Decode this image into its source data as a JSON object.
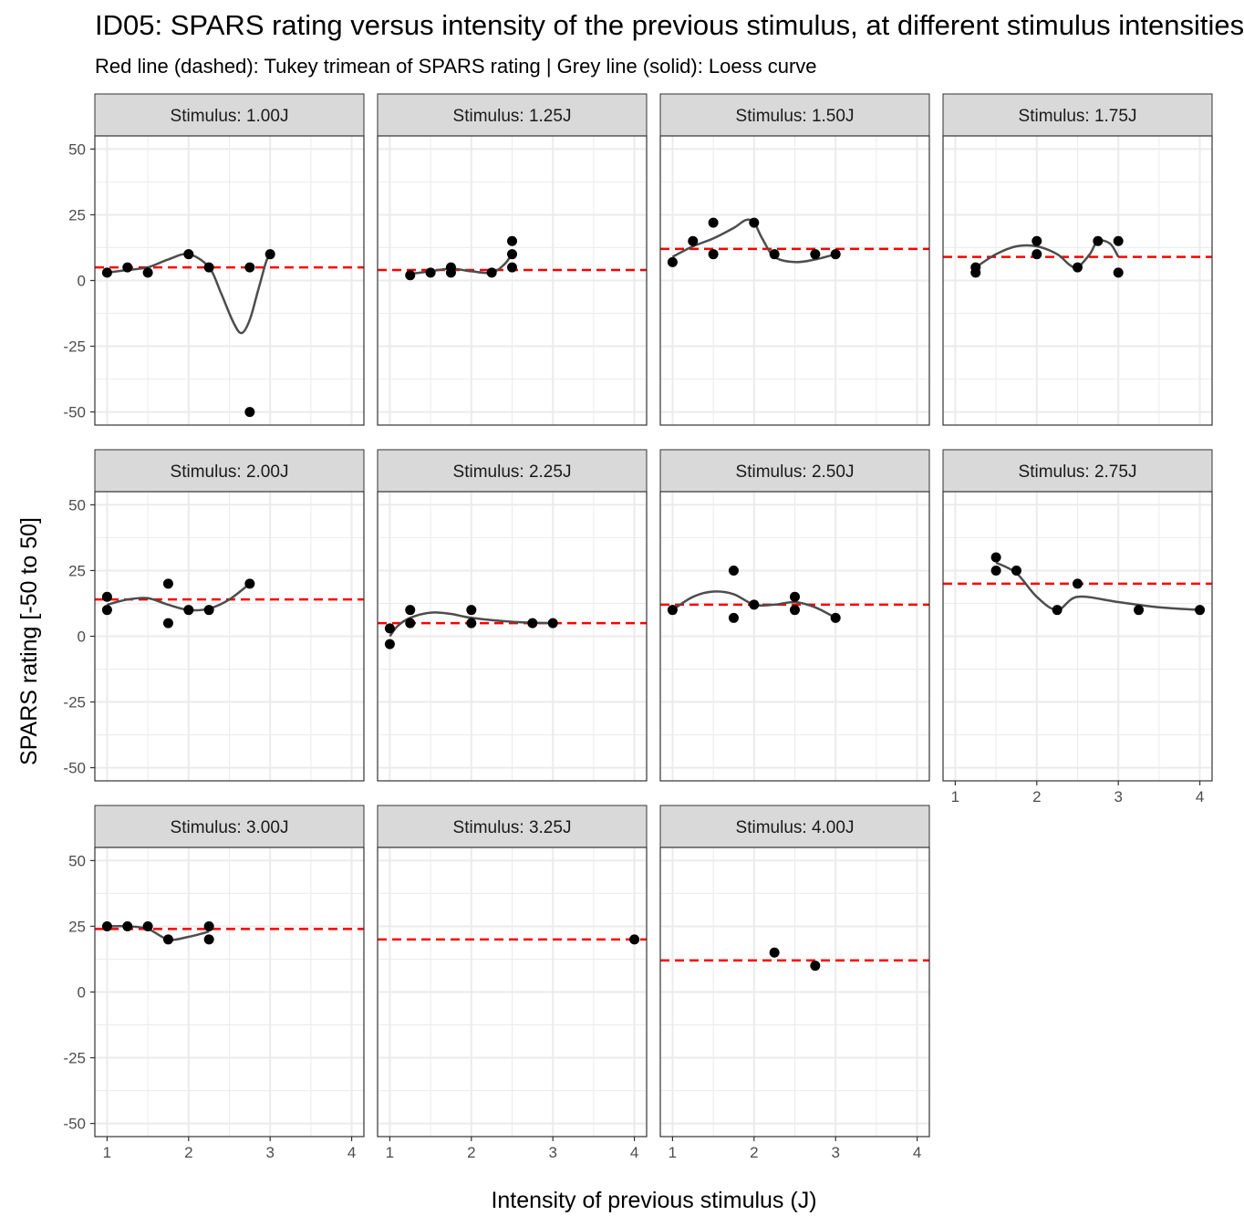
{
  "title": "ID05: SPARS rating versus intensity of the previous stimulus, at different stimulus intensities",
  "subtitle": "Red line (dashed): Tukey trimean of SPARS rating | Grey line (solid): Loess curve",
  "colors": {
    "points": "#000000",
    "trimean": "#ff0000",
    "loess": "#4d4d4d",
    "strip_fill": "#d9d9d9",
    "grid": "#ebebeb"
  },
  "chart_data": {
    "type": "scatter",
    "layout": "faceted-grid",
    "xlabel": "Intensity of previous stimulus (J)",
    "ylabel": "SPARS rating [-50 to 50]",
    "xlim": [
      0.85,
      4.15
    ],
    "ylim": [
      -55,
      55
    ],
    "x_ticks": [
      1,
      2,
      3,
      4
    ],
    "y_ticks": [
      -50,
      -25,
      0,
      25,
      50
    ],
    "grid": true,
    "panels": [
      {
        "label": "Stimulus: 1.00J",
        "trimean": 5,
        "points": [
          [
            1,
            3
          ],
          [
            1.25,
            5
          ],
          [
            1.5,
            3
          ],
          [
            2,
            10
          ],
          [
            2.25,
            5
          ],
          [
            2.75,
            5
          ],
          [
            2.75,
            -50
          ],
          [
            3,
            10
          ]
        ],
        "loess": [
          [
            1,
            3
          ],
          [
            1.25,
            4
          ],
          [
            1.5,
            5
          ],
          [
            1.75,
            8
          ],
          [
            2,
            10
          ],
          [
            2.25,
            5
          ],
          [
            2.4,
            -5
          ],
          [
            2.55,
            -16
          ],
          [
            2.65,
            -20
          ],
          [
            2.75,
            -15
          ],
          [
            2.85,
            -4
          ],
          [
            2.95,
            7
          ],
          [
            3,
            10
          ]
        ]
      },
      {
        "label": "Stimulus: 1.25J",
        "trimean": 4,
        "points": [
          [
            1.25,
            2
          ],
          [
            1.5,
            3
          ],
          [
            1.75,
            3
          ],
          [
            1.75,
            5
          ],
          [
            2.25,
            3
          ],
          [
            2.5,
            5
          ],
          [
            2.5,
            10
          ],
          [
            2.5,
            15
          ]
        ],
        "loess": [
          [
            1.25,
            2.5
          ],
          [
            1.5,
            3.5
          ],
          [
            1.75,
            4.5
          ],
          [
            2,
            3.5
          ],
          [
            2.25,
            3
          ],
          [
            2.4,
            6
          ],
          [
            2.5,
            10
          ]
        ]
      },
      {
        "label": "Stimulus: 1.50J",
        "trimean": 12,
        "points": [
          [
            1,
            7
          ],
          [
            1.25,
            15
          ],
          [
            1.5,
            22
          ],
          [
            1.5,
            10
          ],
          [
            2,
            22
          ],
          [
            2.25,
            10
          ],
          [
            2.75,
            10
          ],
          [
            3,
            10
          ]
        ],
        "loess": [
          [
            1,
            9
          ],
          [
            1.25,
            13
          ],
          [
            1.5,
            16
          ],
          [
            1.75,
            20
          ],
          [
            1.9,
            23
          ],
          [
            2,
            22
          ],
          [
            2.1,
            16
          ],
          [
            2.25,
            9
          ],
          [
            2.5,
            7
          ],
          [
            2.75,
            8
          ],
          [
            3,
            10
          ]
        ]
      },
      {
        "label": "Stimulus: 1.75J",
        "trimean": 9,
        "points": [
          [
            1.25,
            5
          ],
          [
            1.25,
            3
          ],
          [
            2,
            15
          ],
          [
            2,
            10
          ],
          [
            2.5,
            5
          ],
          [
            2.75,
            15
          ],
          [
            3,
            15
          ],
          [
            3,
            3
          ]
        ],
        "loess": [
          [
            1.25,
            5
          ],
          [
            1.5,
            10
          ],
          [
            1.75,
            13
          ],
          [
            2,
            13
          ],
          [
            2.25,
            10
          ],
          [
            2.4,
            6
          ],
          [
            2.5,
            5
          ],
          [
            2.65,
            10
          ],
          [
            2.75,
            15
          ],
          [
            2.9,
            14
          ],
          [
            3,
            9
          ]
        ]
      },
      {
        "label": "Stimulus: 2.00J",
        "trimean": 14,
        "points": [
          [
            1,
            15
          ],
          [
            1,
            10
          ],
          [
            1.75,
            20
          ],
          [
            1.75,
            5
          ],
          [
            2,
            10
          ],
          [
            2.25,
            10
          ],
          [
            2.75,
            20
          ]
        ],
        "loess": [
          [
            1,
            12
          ],
          [
            1.25,
            14
          ],
          [
            1.5,
            14.5
          ],
          [
            1.75,
            12
          ],
          [
            2,
            10
          ],
          [
            2.25,
            10.5
          ],
          [
            2.5,
            14
          ],
          [
            2.75,
            20
          ]
        ]
      },
      {
        "label": "Stimulus: 2.25J",
        "trimean": 5,
        "points": [
          [
            1,
            3
          ],
          [
            1,
            -3
          ],
          [
            1.25,
            10
          ],
          [
            1.25,
            5
          ],
          [
            2,
            10
          ],
          [
            2,
            5
          ],
          [
            2.75,
            5
          ],
          [
            3,
            5
          ]
        ],
        "loess": [
          [
            1,
            0
          ],
          [
            1.1,
            4
          ],
          [
            1.25,
            7
          ],
          [
            1.5,
            9
          ],
          [
            1.75,
            8.5
          ],
          [
            2,
            7
          ],
          [
            2.5,
            5.5
          ],
          [
            3,
            5
          ]
        ]
      },
      {
        "label": "Stimulus: 2.50J",
        "trimean": 12,
        "points": [
          [
            1,
            10
          ],
          [
            1.75,
            25
          ],
          [
            1.75,
            7
          ],
          [
            2,
            12
          ],
          [
            2.5,
            15
          ],
          [
            2.5,
            10
          ],
          [
            3,
            7
          ]
        ],
        "loess": [
          [
            1,
            10
          ],
          [
            1.25,
            15
          ],
          [
            1.5,
            17
          ],
          [
            1.75,
            16
          ],
          [
            2,
            12
          ],
          [
            2.25,
            12
          ],
          [
            2.5,
            13
          ],
          [
            2.75,
            11
          ],
          [
            3,
            7
          ]
        ]
      },
      {
        "label": "Stimulus: 2.75J",
        "trimean": 20,
        "points": [
          [
            1.5,
            30
          ],
          [
            1.5,
            25
          ],
          [
            1.75,
            25
          ],
          [
            2.25,
            10
          ],
          [
            2.5,
            20
          ],
          [
            3.25,
            10
          ],
          [
            4,
            10
          ]
        ],
        "loess": [
          [
            1.5,
            28
          ],
          [
            1.75,
            24
          ],
          [
            2,
            15
          ],
          [
            2.25,
            10
          ],
          [
            2.5,
            15
          ],
          [
            3,
            13
          ],
          [
            3.5,
            11
          ],
          [
            4,
            10
          ]
        ]
      },
      {
        "label": "Stimulus: 3.00J",
        "trimean": 24,
        "points": [
          [
            1,
            25
          ],
          [
            1.25,
            25
          ],
          [
            1.5,
            25
          ],
          [
            1.75,
            20
          ],
          [
            2.25,
            25
          ],
          [
            2.25,
            20
          ]
        ],
        "loess": [
          [
            1,
            25
          ],
          [
            1.25,
            25
          ],
          [
            1.5,
            24
          ],
          [
            1.75,
            20
          ],
          [
            2,
            21
          ],
          [
            2.25,
            23
          ]
        ]
      },
      {
        "label": "Stimulus: 3.25J",
        "trimean": 20,
        "points": [
          [
            4,
            20
          ]
        ],
        "loess": []
      },
      {
        "label": "Stimulus: 4.00J",
        "trimean": 12,
        "points": [
          [
            2.25,
            15
          ],
          [
            2.75,
            10
          ]
        ],
        "loess": []
      }
    ]
  }
}
